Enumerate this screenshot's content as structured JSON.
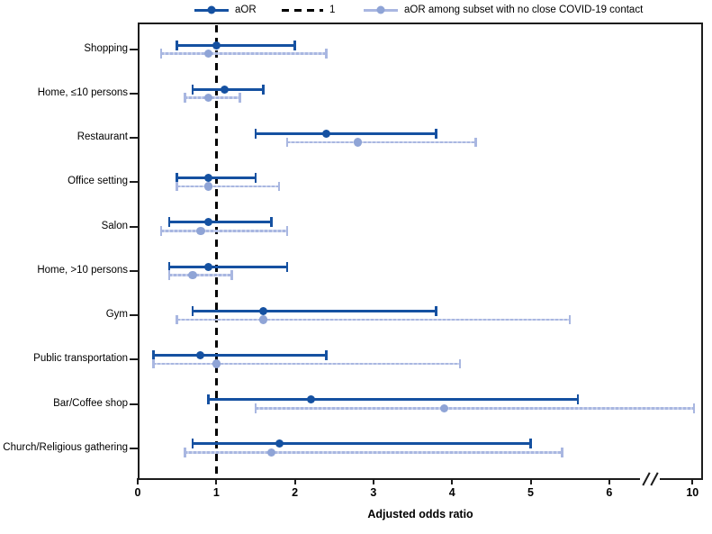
{
  "legend": {
    "aor_label": "aOR",
    "reference_label": "1",
    "subset_label": "aOR among subset with no close COVID-19 contact"
  },
  "colors": {
    "aor": "#1551a1",
    "aor_dot": "#1551a1",
    "subset": "#a9b7e1",
    "subset_dot": "#8fa4d6",
    "reference": "#000000",
    "frame": "#1c1c1c"
  },
  "chart_data": {
    "type": "forest",
    "title": "",
    "xlabel": "Adjusted odds ratio",
    "x_ticks": [
      0,
      1,
      2,
      3,
      4,
      5,
      6,
      10
    ],
    "x_tick_labels": [
      "0",
      "1",
      "2",
      "3",
      "4",
      "5",
      "6",
      "10"
    ],
    "axis_break_between": [
      6,
      10
    ],
    "reference_line": 1,
    "grid": false,
    "legend_position": "top",
    "categories": [
      "Shopping",
      "Home, ≤10 persons",
      "Restaurant",
      "Office setting",
      "Salon",
      "Home, >10 persons",
      "Gym",
      "Public transportation",
      "Bar/Coffee shop",
      "Church/Religious gathering"
    ],
    "series": [
      {
        "name": "aOR",
        "values": [
          {
            "or": 1.0,
            "lo": 0.5,
            "hi": 2.0
          },
          {
            "or": 1.1,
            "lo": 0.7,
            "hi": 1.6
          },
          {
            "or": 2.4,
            "lo": 1.5,
            "hi": 3.8
          },
          {
            "or": 0.9,
            "lo": 0.5,
            "hi": 1.5
          },
          {
            "or": 0.9,
            "lo": 0.4,
            "hi": 1.7
          },
          {
            "or": 0.9,
            "lo": 0.4,
            "hi": 1.9
          },
          {
            "or": 1.6,
            "lo": 0.7,
            "hi": 3.8
          },
          {
            "or": 0.8,
            "lo": 0.2,
            "hi": 2.4
          },
          {
            "or": 2.2,
            "lo": 0.9,
            "hi": 5.6
          },
          {
            "or": 1.8,
            "lo": 0.7,
            "hi": 5.0
          }
        ]
      },
      {
        "name": "aOR among subset with no close COVID-19 contact",
        "values": [
          {
            "or": 0.9,
            "lo": 0.3,
            "hi": 2.4
          },
          {
            "or": 0.9,
            "lo": 0.6,
            "hi": 1.3
          },
          {
            "or": 2.8,
            "lo": 1.9,
            "hi": 4.3
          },
          {
            "or": 0.9,
            "lo": 0.5,
            "hi": 1.8
          },
          {
            "or": 0.8,
            "lo": 0.3,
            "hi": 1.9
          },
          {
            "or": 0.7,
            "lo": 0.4,
            "hi": 1.2
          },
          {
            "or": 1.6,
            "lo": 0.5,
            "hi": 5.5
          },
          {
            "or": 1.0,
            "lo": 0.2,
            "hi": 4.1
          },
          {
            "or": 3.9,
            "lo": 1.5,
            "hi": 10.1
          },
          {
            "or": 1.7,
            "lo": 0.6,
            "hi": 5.4
          }
        ]
      }
    ]
  }
}
